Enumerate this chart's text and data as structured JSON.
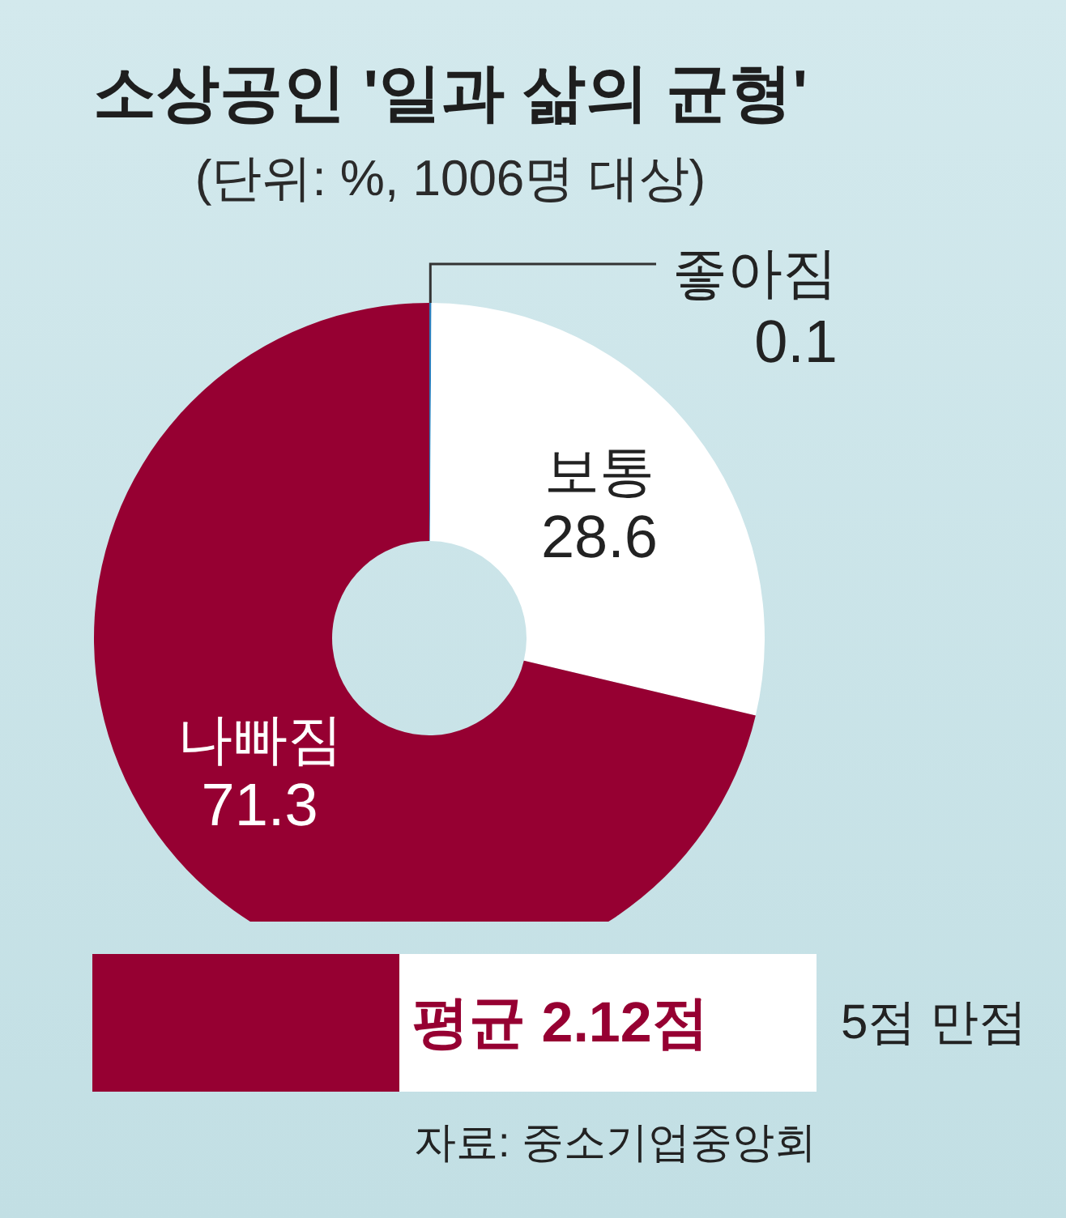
{
  "chart_data": [
    {
      "type": "donut",
      "title": "소상공인 '일과 삶의 균형'",
      "subtitle": "(단위: %, 1006명 대상)",
      "categories": [
        "좋아짐",
        "보통",
        "나빠짐"
      ],
      "values": [
        0.1,
        28.6,
        71.3
      ],
      "colors": [
        "#2b7bbb",
        "#ffffff",
        "#960032"
      ],
      "data_labels": true
    },
    {
      "type": "bar",
      "orientation": "horizontal",
      "stacked": true,
      "categories": [
        null
      ],
      "series": [
        {
          "color": "#960032",
          "values": [
            2.12
          ],
          "value_labels": [
            "평균 2.12점"
          ]
        },
        {
          "color": "#ffffff",
          "values": [
            2.88
          ]
        }
      ],
      "xlim": [
        0,
        5
      ],
      "tick_labels": false,
      "annotations": [
        "5점 만점",
        "자료: 중소기업중앙회"
      ]
    }
  ]
}
